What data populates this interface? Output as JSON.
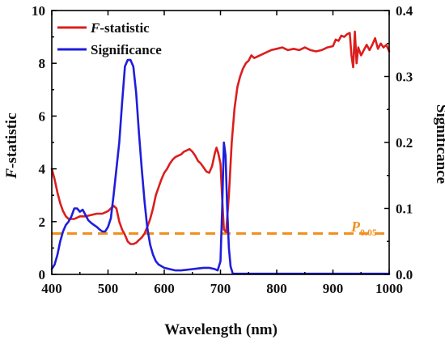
{
  "chart_data": {
    "type": "line",
    "xlabel": "Wavelength (nm)",
    "ylabel_left_prefix": "F",
    "ylabel_left_suffix": "-statistic",
    "ylabel_right": "Significance",
    "xlim": [
      400,
      1000
    ],
    "ylim_left": [
      0,
      10
    ],
    "ylim_right": [
      0,
      0.4
    ],
    "x_ticks": [
      "400",
      "500",
      "600",
      "700",
      "800",
      "900",
      "1000"
    ],
    "y_left_ticks": [
      "0",
      "2",
      "4",
      "6",
      "8",
      "10"
    ],
    "y_right_ticks": [
      "0.0",
      "0.1",
      "0.2",
      "0.3",
      "0.4"
    ],
    "legend_position": "top-left",
    "threshold": {
      "value_left_axis": 1.55,
      "label_main": "P",
      "label_sub": "0.05",
      "color": "#f0901e"
    },
    "series": [
      {
        "name_prefix": "F",
        "name_suffix": "-statistic",
        "axis": "left",
        "color": "#dc1e1e",
        "x": [
          400,
          405,
          410,
          415,
          420,
          425,
          430,
          440,
          450,
          460,
          470,
          480,
          490,
          500,
          505,
          510,
          515,
          520,
          525,
          530,
          535,
          540,
          545,
          550,
          555,
          560,
          565,
          570,
          575,
          580,
          585,
          590,
          595,
          600,
          605,
          610,
          615,
          620,
          625,
          630,
          635,
          640,
          645,
          650,
          655,
          660,
          665,
          670,
          675,
          680,
          685,
          690,
          693,
          696,
          700,
          703,
          706,
          710,
          715,
          720,
          725,
          730,
          735,
          740,
          745,
          750,
          755,
          760,
          770,
          780,
          790,
          800,
          810,
          820,
          830,
          840,
          850,
          860,
          870,
          880,
          890,
          900,
          905,
          910,
          915,
          920,
          925,
          930,
          933,
          936,
          939,
          942,
          945,
          950,
          955,
          960,
          965,
          970,
          975,
          980,
          985,
          990,
          995,
          1000
        ],
        "y": [
          4.0,
          3.6,
          3.1,
          2.7,
          2.4,
          2.2,
          2.1,
          2.1,
          2.2,
          2.2,
          2.25,
          2.3,
          2.3,
          2.4,
          2.5,
          2.6,
          2.5,
          2.0,
          1.7,
          1.5,
          1.25,
          1.15,
          1.15,
          1.2,
          1.3,
          1.4,
          1.55,
          1.8,
          2.1,
          2.5,
          3.0,
          3.3,
          3.6,
          3.85,
          4.0,
          4.2,
          4.35,
          4.45,
          4.5,
          4.55,
          4.65,
          4.7,
          4.75,
          4.65,
          4.5,
          4.3,
          4.2,
          4.05,
          3.9,
          3.85,
          4.1,
          4.6,
          4.8,
          4.6,
          4.2,
          2.9,
          1.7,
          1.6,
          3.0,
          5.0,
          6.3,
          7.1,
          7.5,
          7.8,
          8.0,
          8.1,
          8.3,
          8.2,
          8.3,
          8.4,
          8.5,
          8.55,
          8.6,
          8.5,
          8.55,
          8.5,
          8.6,
          8.5,
          8.45,
          8.5,
          8.6,
          8.65,
          8.9,
          8.85,
          9.05,
          9.0,
          9.1,
          9.15,
          8.3,
          7.85,
          9.2,
          8.0,
          8.6,
          8.3,
          8.5,
          8.7,
          8.5,
          8.7,
          8.95,
          8.55,
          8.75,
          8.6,
          8.7,
          8.45
        ]
      },
      {
        "name": "Significance",
        "axis": "right",
        "color": "#1e1edc",
        "x": [
          400,
          405,
          410,
          415,
          420,
          425,
          430,
          435,
          440,
          445,
          450,
          455,
          460,
          465,
          470,
          475,
          480,
          485,
          490,
          495,
          500,
          505,
          510,
          515,
          520,
          525,
          530,
          535,
          540,
          545,
          550,
          555,
          560,
          565,
          570,
          575,
          580,
          585,
          590,
          600,
          610,
          620,
          630,
          640,
          650,
          660,
          670,
          680,
          690,
          695,
          700,
          703,
          706,
          709,
          712,
          715,
          718,
          722,
          730,
          760,
          800,
          900,
          1000
        ],
        "y": [
          0.008,
          0.015,
          0.03,
          0.05,
          0.065,
          0.075,
          0.08,
          0.088,
          0.1,
          0.1,
          0.095,
          0.098,
          0.09,
          0.082,
          0.078,
          0.075,
          0.072,
          0.068,
          0.065,
          0.065,
          0.072,
          0.085,
          0.12,
          0.16,
          0.2,
          0.26,
          0.315,
          0.325,
          0.325,
          0.315,
          0.275,
          0.215,
          0.16,
          0.11,
          0.07,
          0.045,
          0.03,
          0.02,
          0.015,
          0.01,
          0.008,
          0.006,
          0.006,
          0.007,
          0.008,
          0.009,
          0.01,
          0.01,
          0.008,
          0.006,
          0.02,
          0.1,
          0.2,
          0.18,
          0.1,
          0.04,
          0.012,
          0.001,
          0.001,
          0.001,
          0.001,
          0.001,
          0.001
        ]
      }
    ]
  }
}
